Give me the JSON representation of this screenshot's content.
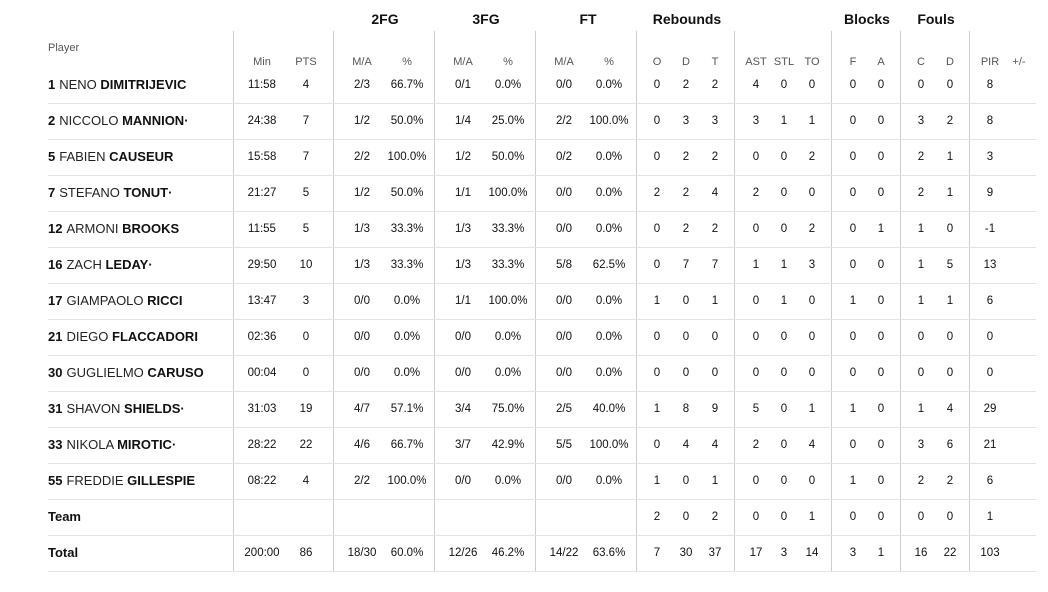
{
  "groups": [
    "2FG",
    "3FG",
    "FT",
    "Rebounds",
    "Blocks",
    "Fouls"
  ],
  "headers": {
    "player": "Player",
    "cols": [
      "Min",
      "PTS",
      "M/A",
      "%",
      "M/A",
      "%",
      "M/A",
      "%",
      "O",
      "D",
      "T",
      "AST",
      "STL",
      "TO",
      "F",
      "A",
      "C",
      "D",
      "PIR",
      "+/-"
    ]
  },
  "players": [
    {
      "num": "1",
      "first": "NENO",
      "last": "DIMITRIJEVIC",
      "marker": "",
      "stats": [
        "11:58",
        "4",
        "2/3",
        "66.7%",
        "0/1",
        "0.0%",
        "0/0",
        "0.0%",
        "0",
        "2",
        "2",
        "4",
        "0",
        "0",
        "0",
        "0",
        "0",
        "0",
        "8",
        ""
      ]
    },
    {
      "num": "2",
      "first": "NICCOLO",
      "last": "MANNION",
      "marker": "·",
      "stats": [
        "24:38",
        "7",
        "1/2",
        "50.0%",
        "1/4",
        "25.0%",
        "2/2",
        "100.0%",
        "0",
        "3",
        "3",
        "3",
        "1",
        "1",
        "0",
        "0",
        "3",
        "2",
        "8",
        ""
      ]
    },
    {
      "num": "5",
      "first": "FABIEN",
      "last": "CAUSEUR",
      "marker": "",
      "stats": [
        "15:58",
        "7",
        "2/2",
        "100.0%",
        "1/2",
        "50.0%",
        "0/2",
        "0.0%",
        "0",
        "2",
        "2",
        "0",
        "0",
        "2",
        "0",
        "0",
        "2",
        "1",
        "3",
        ""
      ]
    },
    {
      "num": "7",
      "first": "STEFANO",
      "last": "TONUT",
      "marker": "·",
      "stats": [
        "21:27",
        "5",
        "1/2",
        "50.0%",
        "1/1",
        "100.0%",
        "0/0",
        "0.0%",
        "2",
        "2",
        "4",
        "2",
        "0",
        "0",
        "0",
        "0",
        "2",
        "1",
        "9",
        ""
      ]
    },
    {
      "num": "12",
      "first": "ARMONI",
      "last": "BROOKS",
      "marker": "",
      "stats": [
        "11:55",
        "5",
        "1/3",
        "33.3%",
        "1/3",
        "33.3%",
        "0/0",
        "0.0%",
        "0",
        "2",
        "2",
        "0",
        "0",
        "2",
        "0",
        "1",
        "1",
        "0",
        "-1",
        ""
      ]
    },
    {
      "num": "16",
      "first": "ZACH",
      "last": "LEDAY",
      "marker": "·",
      "stats": [
        "29:50",
        "10",
        "1/3",
        "33.3%",
        "1/3",
        "33.3%",
        "5/8",
        "62.5%",
        "0",
        "7",
        "7",
        "1",
        "1",
        "3",
        "0",
        "0",
        "1",
        "5",
        "13",
        ""
      ]
    },
    {
      "num": "17",
      "first": "GIAMPAOLO",
      "last": "RICCI",
      "marker": "",
      "stats": [
        "13:47",
        "3",
        "0/0",
        "0.0%",
        "1/1",
        "100.0%",
        "0/0",
        "0.0%",
        "1",
        "0",
        "1",
        "0",
        "1",
        "0",
        "1",
        "0",
        "1",
        "1",
        "6",
        ""
      ]
    },
    {
      "num": "21",
      "first": "DIEGO",
      "last": "FLACCADORI",
      "marker": "",
      "stats": [
        "02:36",
        "0",
        "0/0",
        "0.0%",
        "0/0",
        "0.0%",
        "0/0",
        "0.0%",
        "0",
        "0",
        "0",
        "0",
        "0",
        "0",
        "0",
        "0",
        "0",
        "0",
        "0",
        ""
      ]
    },
    {
      "num": "30",
      "first": "GUGLIELMO",
      "last": "CARUSO",
      "marker": "",
      "stats": [
        "00:04",
        "0",
        "0/0",
        "0.0%",
        "0/0",
        "0.0%",
        "0/0",
        "0.0%",
        "0",
        "0",
        "0",
        "0",
        "0",
        "0",
        "0",
        "0",
        "0",
        "0",
        "0",
        ""
      ]
    },
    {
      "num": "31",
      "first": "SHAVON",
      "last": "SHIELDS",
      "marker": "·",
      "stats": [
        "31:03",
        "19",
        "4/7",
        "57.1%",
        "3/4",
        "75.0%",
        "2/5",
        "40.0%",
        "1",
        "8",
        "9",
        "5",
        "0",
        "1",
        "1",
        "0",
        "1",
        "4",
        "29",
        ""
      ]
    },
    {
      "num": "33",
      "first": "NIKOLA",
      "last": "MIROTIC",
      "marker": "·",
      "stats": [
        "28:22",
        "22",
        "4/6",
        "66.7%",
        "3/7",
        "42.9%",
        "5/5",
        "100.0%",
        "0",
        "4",
        "4",
        "2",
        "0",
        "4",
        "0",
        "0",
        "3",
        "6",
        "21",
        ""
      ]
    },
    {
      "num": "55",
      "first": "FREDDIE",
      "last": "GILLESPIE",
      "marker": "",
      "stats": [
        "08:22",
        "4",
        "2/2",
        "100.0%",
        "0/0",
        "0.0%",
        "0/0",
        "0.0%",
        "1",
        "0",
        "1",
        "0",
        "0",
        "0",
        "1",
        "0",
        "2",
        "2",
        "6",
        ""
      ]
    }
  ],
  "team": {
    "label": "Team",
    "stats": [
      "",
      "",
      "",
      "",
      "",
      "",
      "",
      "",
      "2",
      "0",
      "2",
      "0",
      "0",
      "1",
      "0",
      "0",
      "0",
      "0",
      "1",
      ""
    ]
  },
  "total": {
    "label": "Total",
    "stats": [
      "200:00",
      "86",
      "18/30",
      "60.0%",
      "12/26",
      "46.2%",
      "14/22",
      "63.6%",
      "7",
      "30",
      "37",
      "17",
      "3",
      "14",
      "3",
      "1",
      "16",
      "22",
      "103",
      ""
    ]
  }
}
